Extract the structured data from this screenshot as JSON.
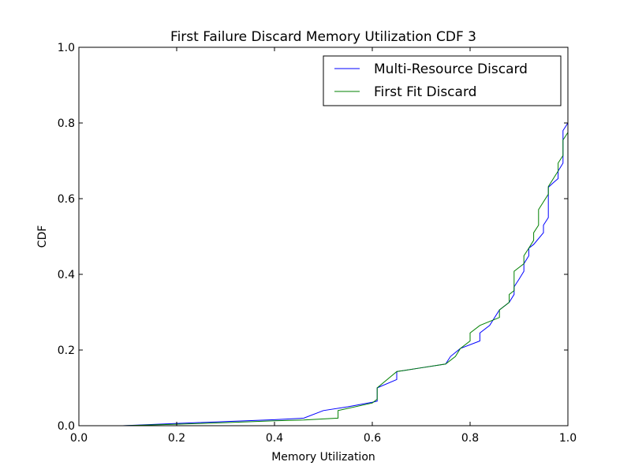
{
  "chart_data": {
    "type": "line",
    "title": "First Failure Discard Memory Utilization CDF 3",
    "xlabel": "Memory Utilization",
    "ylabel": "CDF",
    "xlim": [
      0.0,
      1.0
    ],
    "ylim": [
      0.0,
      1.0
    ],
    "x_ticks": [
      "0.0",
      "0.2",
      "0.4",
      "0.6",
      "0.8",
      "1.0"
    ],
    "y_ticks": [
      "0.0",
      "0.2",
      "0.4",
      "0.6",
      "0.8",
      "1.0"
    ],
    "grid": false,
    "legend_position": "top-right",
    "series": [
      {
        "name": "Multi-Resource Discard",
        "color": "#0000ff",
        "points": [
          [
            0.09,
            0.0
          ],
          [
            0.2,
            0.006
          ],
          [
            0.3,
            0.011
          ],
          [
            0.4,
            0.016
          ],
          [
            0.46,
            0.02
          ],
          [
            0.5,
            0.04
          ],
          [
            0.55,
            0.05
          ],
          [
            0.6,
            0.062
          ],
          [
            0.61,
            0.065
          ],
          [
            0.61,
            0.1
          ],
          [
            0.65,
            0.122
          ],
          [
            0.65,
            0.143
          ],
          [
            0.7,
            0.153
          ],
          [
            0.75,
            0.163
          ],
          [
            0.76,
            0.183
          ],
          [
            0.78,
            0.204
          ],
          [
            0.82,
            0.224
          ],
          [
            0.82,
            0.245
          ],
          [
            0.84,
            0.265
          ],
          [
            0.86,
            0.306
          ],
          [
            0.88,
            0.326
          ],
          [
            0.89,
            0.347
          ],
          [
            0.89,
            0.367
          ],
          [
            0.9,
            0.387
          ],
          [
            0.91,
            0.408
          ],
          [
            0.91,
            0.428
          ],
          [
            0.92,
            0.449
          ],
          [
            0.92,
            0.469
          ],
          [
            0.93,
            0.479
          ],
          [
            0.95,
            0.51
          ],
          [
            0.95,
            0.53
          ],
          [
            0.96,
            0.55
          ],
          [
            0.96,
            0.63
          ],
          [
            0.97,
            0.642
          ],
          [
            0.98,
            0.653
          ],
          [
            0.98,
            0.673
          ],
          [
            0.99,
            0.694
          ],
          [
            0.99,
            0.78
          ],
          [
            1.0,
            0.8
          ],
          [
            1.0,
            1.0
          ]
        ]
      },
      {
        "name": "First Fit Discard",
        "color": "#008000",
        "points": [
          [
            0.09,
            0.0
          ],
          [
            0.2,
            0.004
          ],
          [
            0.3,
            0.008
          ],
          [
            0.4,
            0.013
          ],
          [
            0.46,
            0.015
          ],
          [
            0.53,
            0.02
          ],
          [
            0.53,
            0.04
          ],
          [
            0.6,
            0.06
          ],
          [
            0.61,
            0.07
          ],
          [
            0.61,
            0.1
          ],
          [
            0.65,
            0.143
          ],
          [
            0.7,
            0.153
          ],
          [
            0.75,
            0.163
          ],
          [
            0.77,
            0.183
          ],
          [
            0.78,
            0.204
          ],
          [
            0.8,
            0.224
          ],
          [
            0.8,
            0.245
          ],
          [
            0.82,
            0.265
          ],
          [
            0.86,
            0.286
          ],
          [
            0.86,
            0.306
          ],
          [
            0.88,
            0.326
          ],
          [
            0.88,
            0.347
          ],
          [
            0.89,
            0.357
          ],
          [
            0.89,
            0.408
          ],
          [
            0.91,
            0.428
          ],
          [
            0.91,
            0.449
          ],
          [
            0.92,
            0.469
          ],
          [
            0.93,
            0.49
          ],
          [
            0.93,
            0.51
          ],
          [
            0.94,
            0.53
          ],
          [
            0.94,
            0.571
          ],
          [
            0.96,
            0.612
          ],
          [
            0.96,
            0.632
          ],
          [
            0.98,
            0.673
          ],
          [
            0.98,
            0.694
          ],
          [
            0.99,
            0.714
          ],
          [
            0.99,
            0.755
          ],
          [
            1.0,
            0.775
          ],
          [
            1.0,
            1.0
          ]
        ]
      }
    ]
  }
}
